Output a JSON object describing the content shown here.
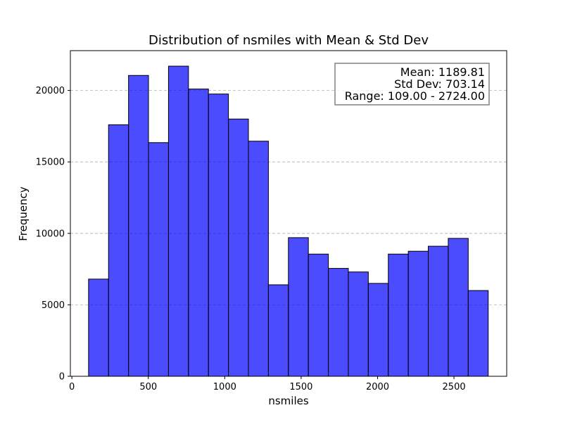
{
  "chart_data": {
    "type": "bar",
    "title": "Distribution of nsmiles with Mean & Std Dev",
    "xlabel": "nsmiles",
    "ylabel": "Frequency",
    "bin_edges": [
      109.0,
      239.75,
      370.5,
      501.25,
      632.0,
      762.75,
      893.5,
      1024.25,
      1155.0,
      1285.75,
      1416.5,
      1547.25,
      1678.0,
      1808.75,
      1939.5,
      2070.25,
      2201.0,
      2331.75,
      2462.5,
      2593.25,
      2724.0
    ],
    "values": [
      6800,
      17600,
      21050,
      16350,
      21700,
      20100,
      19750,
      18000,
      16450,
      6400,
      9700,
      8550,
      7550,
      7300,
      6500,
      8550,
      8750,
      9100,
      9650,
      6000
    ],
    "xlim": [
      -10,
      2845
    ],
    "ylim": [
      0,
      22785
    ],
    "x_ticks": [
      0,
      500,
      1000,
      1500,
      2000,
      2500
    ],
    "y_ticks": [
      0,
      5000,
      10000,
      15000,
      20000
    ],
    "grid": "y, dashed",
    "bar_color": "#0000ff",
    "bar_opacity": 0.7,
    "edge_color": "#000000",
    "stats_box": {
      "placement": "top-right",
      "lines": [
        "Mean: 1189.81",
        "Std Dev: 703.14",
        "Range: 109.00 - 2724.00"
      ]
    }
  }
}
